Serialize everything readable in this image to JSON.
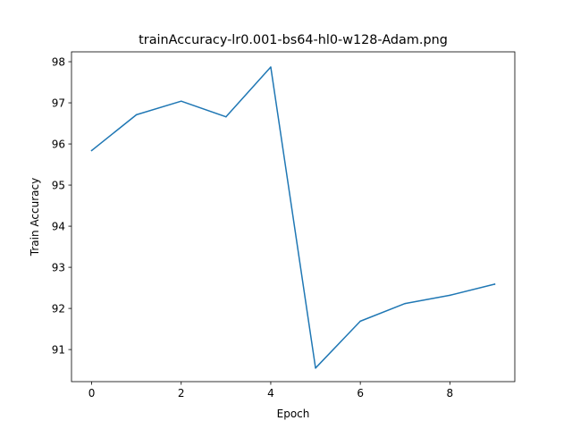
{
  "chart_data": {
    "type": "line",
    "title": "trainAccuracy-lr0.001-bs64-hl0-w128-Adam.png",
    "xlabel": "Epoch",
    "ylabel": "Train Accuracy",
    "x": [
      0,
      1,
      2,
      3,
      4,
      5,
      6,
      7,
      8,
      9
    ],
    "series": [
      {
        "values": [
          95.84,
          96.71,
          97.04,
          96.66,
          97.87,
          90.55,
          91.69,
          92.12,
          92.32,
          92.59
        ],
        "color": "#1f77b4"
      }
    ],
    "xticks": [
      "0",
      "2",
      "4",
      "6",
      "8"
    ],
    "yticks": [
      "91",
      "92",
      "93",
      "94",
      "95",
      "96",
      "97",
      "98"
    ],
    "xlim": [
      -0.45,
      9.45
    ],
    "ylim": [
      90.22,
      98.24
    ],
    "grid": false,
    "legend": false
  }
}
